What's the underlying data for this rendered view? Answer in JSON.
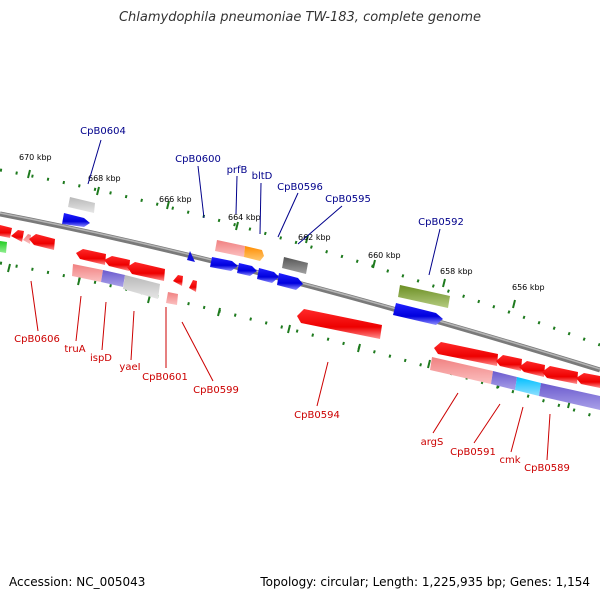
{
  "title": "Chlamydophila pneumoniae TW-183, complete genome",
  "footer": {
    "accession": "Accession: NC_005043",
    "summary": "Topology: circular; Length: 1,225,935 bp; Genes: 1,154"
  },
  "colors": {
    "backbone": "#808080",
    "tick": "#1e7a1e",
    "label_plus": "#00008b",
    "label_minus": "#cc0000"
  },
  "ticks": [
    "656 kbp",
    "658 kbp",
    "660 kbp",
    "662 kbp",
    "664 kbp",
    "666 kbp",
    "668 kbp",
    "670 kbp"
  ],
  "labels_plus": [
    "CpB0604",
    "CpB0600",
    "prfB",
    "bltD",
    "CpB0596",
    "CpB0595",
    "CpB0592"
  ],
  "labels_minus": [
    "CpB0606",
    "truA",
    "ispD",
    "yaeI",
    "CpB0601",
    "CpB0599",
    "CpB0594",
    "argS",
    "CpB0591",
    "cmk",
    "CpB0589"
  ]
}
